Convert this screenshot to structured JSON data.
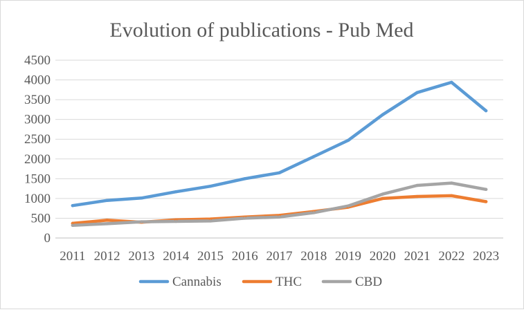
{
  "chart_data": {
    "type": "line",
    "title": "Evolution of publications - Pub Med",
    "xlabel": "",
    "ylabel": "",
    "categories": [
      "2011",
      "2012",
      "2013",
      "2014",
      "2015",
      "2016",
      "2017",
      "2018",
      "2019",
      "2020",
      "2021",
      "2022",
      "2023"
    ],
    "ylim": [
      0,
      4500
    ],
    "yticks": [
      "0",
      "500",
      "1000",
      "1500",
      "2000",
      "2500",
      "3000",
      "3500",
      "4000",
      "4500"
    ],
    "grid": true,
    "legend_position": "bottom",
    "series": [
      {
        "name": "Cannabis",
        "color": "#5b9bd5",
        "values": [
          820,
          950,
          1010,
          1170,
          1310,
          1500,
          1650,
          2060,
          2470,
          3120,
          3680,
          3940,
          3220
        ]
      },
      {
        "name": "THC",
        "color": "#ed7d31",
        "values": [
          370,
          450,
          400,
          460,
          480,
          530,
          570,
          670,
          780,
          1000,
          1050,
          1070,
          920
        ]
      },
      {
        "name": "CBD",
        "color": "#a5a5a5",
        "values": [
          320,
          360,
          410,
          420,
          430,
          500,
          530,
          640,
          810,
          1110,
          1330,
          1390,
          1230
        ]
      }
    ]
  }
}
